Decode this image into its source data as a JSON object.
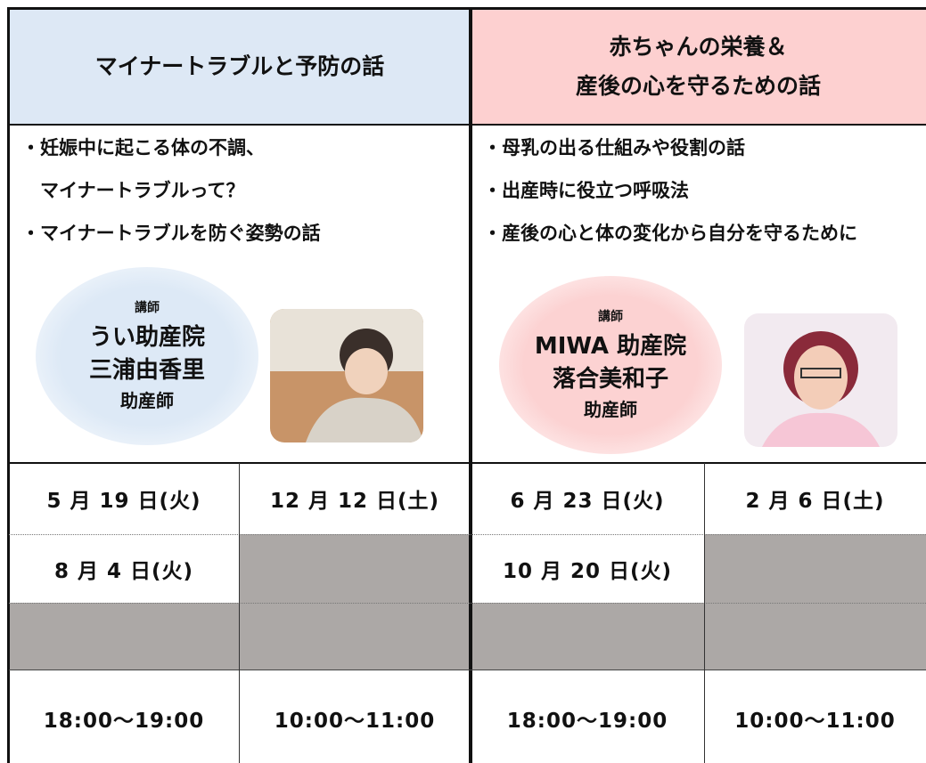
{
  "columns": [
    {
      "title": [
        "マイナートラブルと予防の話"
      ],
      "bullets": [
        "・妊娠中に起こる体の不調、",
        "　マイナートラブルって？",
        "・マイナートラブルを防ぐ姿勢の話"
      ],
      "lecturer": {
        "role": "講師",
        "affiliation": "うい助産院",
        "name": "三浦由香里",
        "title": "助産師"
      }
    },
    {
      "title": [
        "赤ちゃんの栄養＆",
        "産後の心を守るための話"
      ],
      "bullets": [
        "・母乳の出る仕組みや役割の話",
        "・出産時に役立つ呼吸法",
        "・産後の心と体の変化から自分を守るために"
      ],
      "lecturer": {
        "role": "講師",
        "affiliation": "MIWA 助産院",
        "name": "落合美和子",
        "title": "助産師"
      }
    }
  ],
  "schedule": {
    "rows": [
      [
        "5 月 19 日(火)",
        "12 月 12 日(土)",
        "6 月 23 日(火)",
        "2 月 6 日(土)"
      ],
      [
        "8 月 4 日(火)",
        null,
        "10 月 20 日(火)",
        null
      ],
      [
        null,
        null,
        null,
        null
      ],
      [
        "18:00～19:00",
        "10:00～11:00",
        "18:00～19:00",
        "10:00～11:00"
      ]
    ]
  }
}
